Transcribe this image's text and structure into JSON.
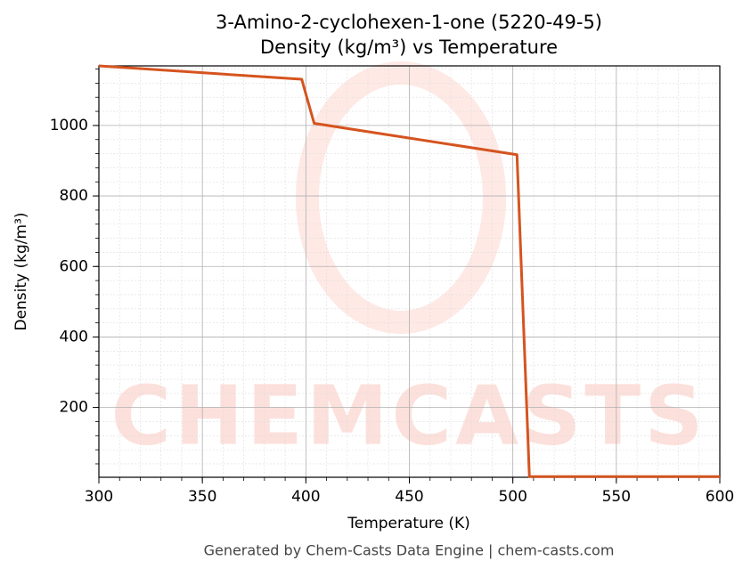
{
  "chart_data": {
    "type": "line",
    "title": "3-Amino-2-cyclohexen-1-one (5220-49-5)",
    "subtitle": "Density (kg/m³) vs Temperature",
    "x_label": "Temperature (K)",
    "y_label": "Density (kg/m³)",
    "footer": "Generated by Chem-Casts Data Engine | chem-casts.com",
    "watermark": "CHEMCASTS",
    "x": [
      300,
      398,
      404,
      502,
      508,
      600
    ],
    "series": [
      {
        "name": "Density",
        "color": "#d5541f",
        "values": [
          1169,
          1131,
          1006,
          917,
          4,
          4
        ]
      }
    ],
    "xlim": [
      300,
      600
    ],
    "xticks": [
      300,
      350,
      400,
      450,
      500,
      550,
      600
    ],
    "ylim": [
      2,
      1169
    ],
    "yticks": [
      200,
      400,
      600,
      800,
      1000
    ],
    "grid": true,
    "minor_grid": true
  }
}
